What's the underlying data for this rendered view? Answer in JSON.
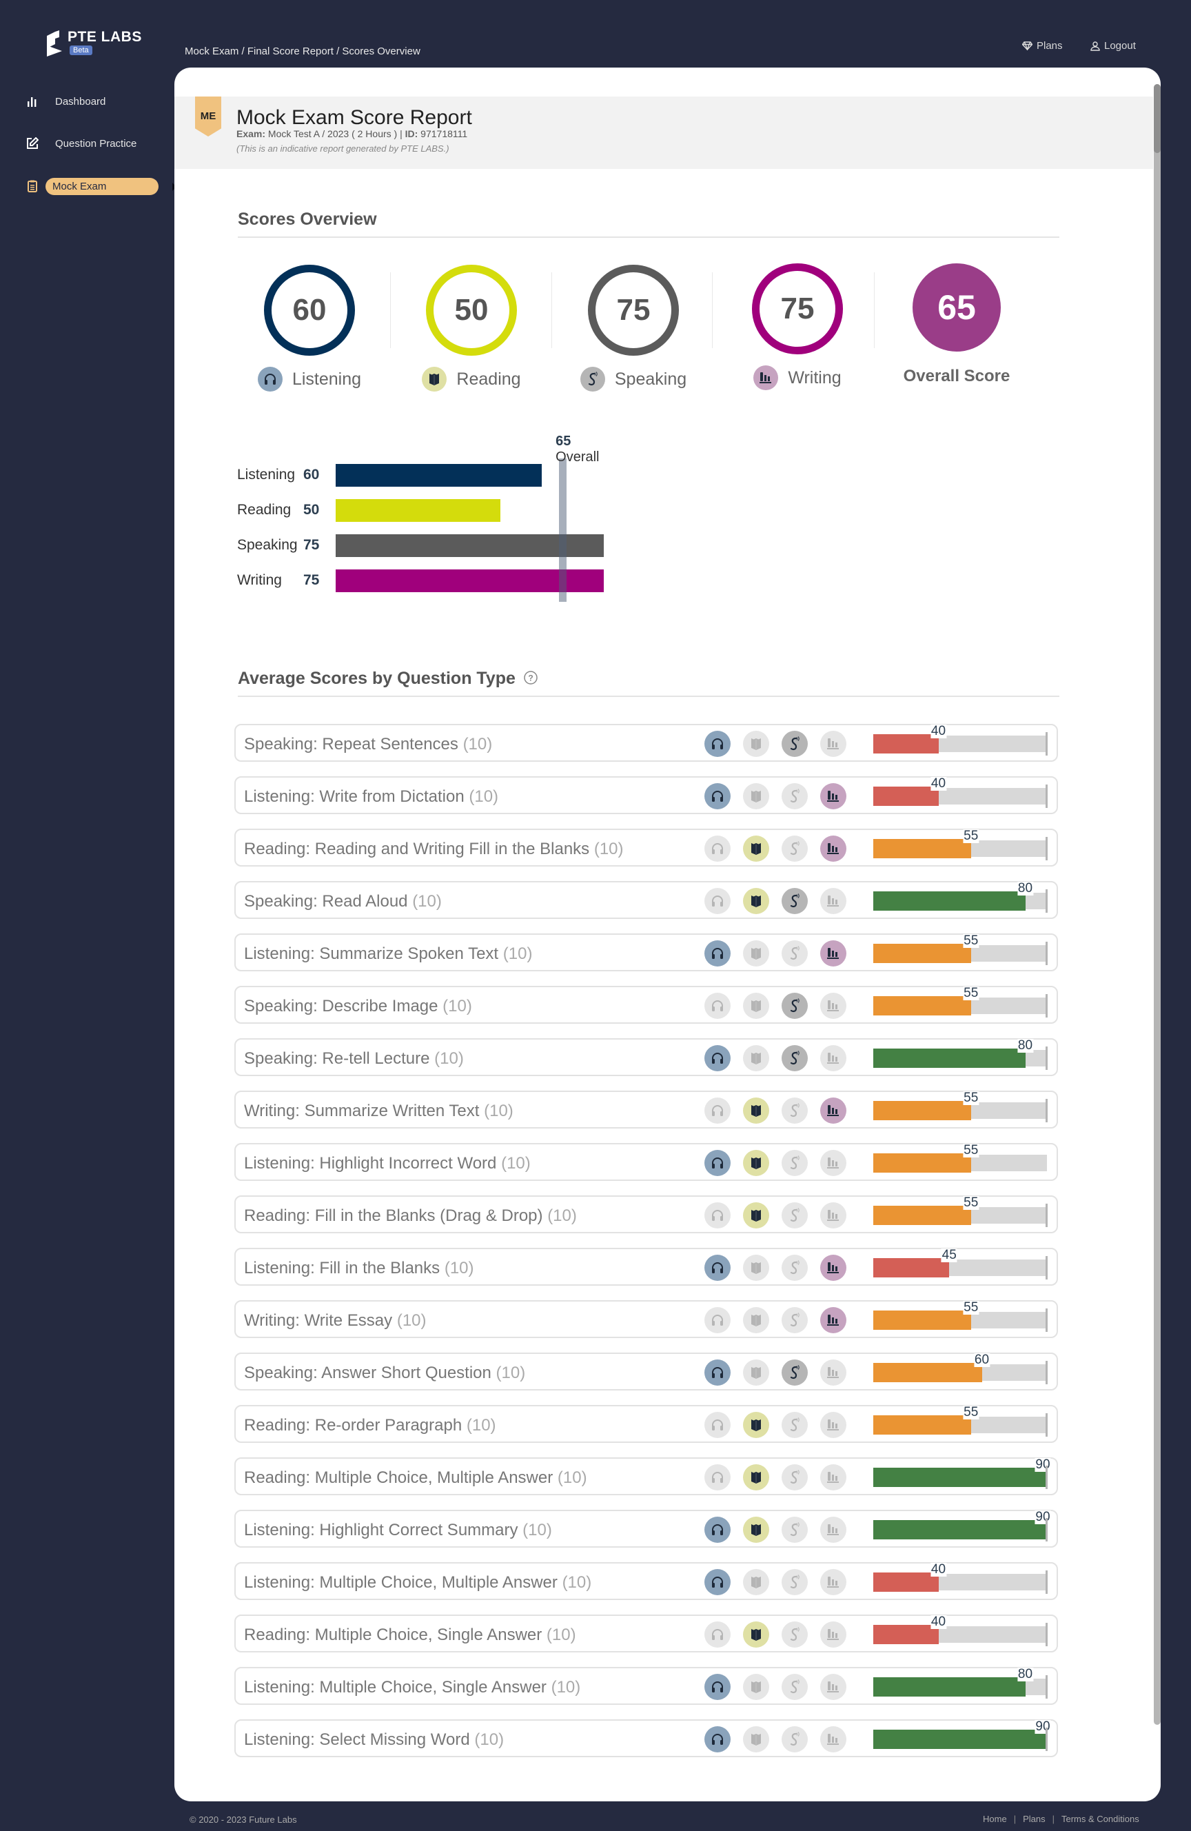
{
  "brand": {
    "name": "PTE LABS",
    "badge": "Beta"
  },
  "sidebar": {
    "items": [
      {
        "label": "Dashboard",
        "icon": "bar-chart-icon",
        "active": false
      },
      {
        "label": "Question Practice",
        "icon": "edit-icon",
        "active": false
      },
      {
        "label": "Mock Exam",
        "icon": "clipboard-icon",
        "active": true
      }
    ]
  },
  "breadcrumb": "Mock Exam / Final Score Report / Scores  Overview",
  "topnav": {
    "plans": "Plans",
    "logout": "Logout"
  },
  "report": {
    "badge": "ME",
    "title": "Mock Exam Score Report",
    "exam_label": "Exam:",
    "exam_value": " Mock Test A / 2023 ( 2 Hours ) | ",
    "id_label": "ID:",
    "id_value": " 971718111",
    "note": "(This is an indicative report generated by PTE LABS.)"
  },
  "scores_overview": {
    "title": "Scores Overview",
    "skills": [
      {
        "name": "Listening",
        "score": "60",
        "color": "#033058",
        "dot": "#8aa3bb",
        "icon": "headphones-icon"
      },
      {
        "name": "Reading",
        "score": "50",
        "color": "#d4dc0c",
        "dot": "#dfe0a4",
        "icon": "book-icon"
      },
      {
        "name": "Speaking",
        "score": "75",
        "color": "#5b5b5b",
        "dot": "#b5b5b5",
        "icon": "speech-icon"
      },
      {
        "name": "Writing",
        "score": "75",
        "color": "#a0007c",
        "dot": "#c6a3c0",
        "icon": "writing-icon"
      }
    ],
    "overall": {
      "name": "Overall Score",
      "score": "65",
      "color": "#9a3d88"
    }
  },
  "chart_data": [
    {
      "type": "bar",
      "orientation": "horizontal",
      "categories": [
        "Listening",
        "Reading",
        "Speaking",
        "Writing"
      ],
      "values": [
        60,
        50,
        75,
        75
      ],
      "value_labels": [
        "60",
        "50",
        "75",
        "75"
      ],
      "colors": [
        "#033058",
        "#d4dc0c",
        "#5b5b5b",
        "#a0007c"
      ],
      "reference_line": {
        "value": 65,
        "label_value": "65",
        "label_text": "Overall"
      },
      "xlim": [
        10,
        75
      ]
    },
    {
      "type": "bar",
      "orientation": "horizontal",
      "title": "Average Scores by Question Type",
      "xlim": [
        10,
        90
      ],
      "categories": [
        "Speaking: Repeat Sentences",
        "Listening: Write from Dictation",
        "Reading: Reading and Writing Fill in the Blanks",
        "Speaking: Read Aloud",
        "Listening: Summarize Spoken Text",
        "Speaking: Describe Image",
        "Speaking: Re-tell Lecture",
        "Writing: Summarize Written Text",
        "Listening: Highlight Incorrect Word",
        "Reading: Fill in the Blanks (Drag & Drop)",
        "Listening: Fill in the Blanks",
        "Writing: Write Essay",
        "Speaking: Answer Short Question",
        "Reading: Re-order Paragraph",
        "Reading: Multiple Choice, Multiple Answer",
        "Listening: Highlight Correct Summary",
        "Listening: Multiple Choice, Multiple Answer",
        "Reading: Multiple Choice, Single Answer",
        "Listening: Multiple Choice, Single Answer",
        "Listening: Select Missing Word"
      ],
      "values": [
        40,
        40,
        55,
        80,
        55,
        55,
        80,
        55,
        55,
        55,
        45,
        55,
        60,
        55,
        90,
        90,
        40,
        40,
        80,
        90
      ]
    }
  ],
  "question_types": {
    "title": "Average Scores by Question Type",
    "help_icon": "question-circle-icon",
    "colors": {
      "low": "#d45f56",
      "mid": "#ea9433",
      "high": "#448144",
      "track": "#d8d8d8"
    },
    "skill_order": [
      "listening",
      "reading",
      "speaking",
      "writing"
    ],
    "rows": [
      {
        "name": "Speaking: Repeat Sentences",
        "count": "(10)",
        "score": 40,
        "label": "40",
        "skills": [
          1,
          0,
          1,
          0
        ],
        "endcap": true
      },
      {
        "name": "Listening: Write from Dictation",
        "count": "(10)",
        "score": 40,
        "label": "40",
        "skills": [
          1,
          0,
          0,
          1
        ],
        "endcap": true
      },
      {
        "name": "Reading: Reading and Writing Fill in the Blanks",
        "count": "(10)",
        "score": 55,
        "label": "55",
        "skills": [
          0,
          1,
          0,
          1
        ],
        "endcap": true
      },
      {
        "name": "Speaking: Read Aloud",
        "count": "(10)",
        "score": 80,
        "label": "80",
        "skills": [
          0,
          1,
          1,
          0
        ],
        "endcap": true
      },
      {
        "name": "Listening: Summarize Spoken Text",
        "count": "(10)",
        "score": 55,
        "label": "55",
        "skills": [
          1,
          0,
          0,
          1
        ],
        "endcap": true
      },
      {
        "name": "Speaking: Describe Image",
        "count": "(10)",
        "score": 55,
        "label": "55",
        "skills": [
          0,
          0,
          1,
          0
        ],
        "endcap": true
      },
      {
        "name": "Speaking: Re-tell Lecture",
        "count": "(10)",
        "score": 80,
        "label": "80",
        "skills": [
          1,
          0,
          1,
          0
        ],
        "endcap": true
      },
      {
        "name": "Writing: Summarize Written Text",
        "count": "(10)",
        "score": 55,
        "label": "55",
        "skills": [
          0,
          1,
          0,
          1
        ],
        "endcap": true
      },
      {
        "name": "Listening: Highlight Incorrect Word",
        "count": "(10)",
        "score": 55,
        "label": "55",
        "skills": [
          1,
          1,
          0,
          0
        ],
        "endcap": false
      },
      {
        "name": "Reading: Fill in the Blanks (Drag & Drop)",
        "count": "(10)",
        "score": 55,
        "label": "55",
        "skills": [
          0,
          1,
          0,
          0
        ],
        "endcap": true
      },
      {
        "name": "Listening: Fill in the Blanks",
        "count": "(10)",
        "score": 45,
        "label": "45",
        "skills": [
          1,
          0,
          0,
          1
        ],
        "endcap": true
      },
      {
        "name": "Writing: Write Essay",
        "count": "(10)",
        "score": 55,
        "label": "55",
        "skills": [
          0,
          0,
          0,
          1
        ],
        "endcap": true
      },
      {
        "name": "Speaking: Answer Short Question",
        "count": "(10)",
        "score": 60,
        "label": "60",
        "skills": [
          1,
          0,
          1,
          0
        ],
        "endcap": true
      },
      {
        "name": "Reading: Re-order Paragraph",
        "count": "(10)",
        "score": 55,
        "label": "55",
        "skills": [
          0,
          1,
          0,
          0
        ],
        "endcap": true
      },
      {
        "name": "Reading: Multiple Choice, Multiple Answer",
        "count": "(10)",
        "score": 90,
        "label": "90",
        "skills": [
          0,
          1,
          0,
          0
        ],
        "endcap": true
      },
      {
        "name": "Listening: Highlight Correct Summary",
        "count": "(10)",
        "score": 90,
        "label": "90",
        "skills": [
          1,
          1,
          0,
          0
        ],
        "endcap": true
      },
      {
        "name": "Listening: Multiple Choice, Multiple Answer",
        "count": "(10)",
        "score": 40,
        "label": "40",
        "skills": [
          1,
          0,
          0,
          0
        ],
        "endcap": true
      },
      {
        "name": "Reading: Multiple Choice, Single Answer",
        "count": "(10)",
        "score": 40,
        "label": "40",
        "skills": [
          0,
          1,
          0,
          0
        ],
        "endcap": true
      },
      {
        "name": "Listening: Multiple Choice, Single Answer",
        "count": "(10)",
        "score": 80,
        "label": "80",
        "skills": [
          1,
          0,
          0,
          0
        ],
        "endcap": true
      },
      {
        "name": "Listening: Select Missing Word",
        "count": "(10)",
        "score": 90,
        "label": "90",
        "skills": [
          1,
          0,
          0,
          0
        ],
        "endcap": true
      }
    ]
  },
  "footer": {
    "copyright": "© 2020 - 2023 Future Labs",
    "links": [
      "Home",
      "Plans",
      "Terms & Conditions"
    ],
    "separator": "|"
  }
}
